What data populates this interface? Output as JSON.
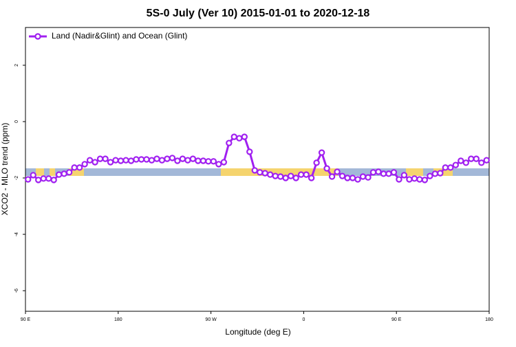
{
  "chart_data": {
    "type": "line",
    "title": "5S-0 July (Ver 10)   2015-01-01 to 2020-12-18",
    "x_label": "Longitude (deg E)",
    "y_label": "XCO2 - MLO trend (ppm)",
    "xlim": [
      90,
      540
    ],
    "ylim": [
      -6.73,
      3.34
    ],
    "xticks": [
      {
        "value": 90,
        "label": "90 E"
      },
      180,
      {
        "value": 270,
        "label": "90 W"
      },
      {
        "value": 360,
        "label": "0"
      },
      {
        "value": 450,
        "label": "90 E"
      },
      {
        "value": 540,
        "label": "180"
      }
    ],
    "yticks": [
      -6,
      -4,
      -2,
      0,
      2
    ],
    "legend": "top-left",
    "x": [
      92.5,
      97.5,
      102.5,
      107.5,
      112.5,
      117.5,
      122.5,
      127.5,
      132.5,
      137.5,
      142.5,
      147.5,
      152.5,
      157.5,
      162.5,
      167.5,
      172.5,
      177.5,
      182.5,
      187.5,
      192.5,
      197.5,
      202.5,
      207.5,
      212.5,
      217.5,
      222.5,
      227.5,
      232.5,
      237.5,
      242.5,
      247.5,
      252.5,
      257.5,
      262.5,
      267.5,
      272.5,
      277.5,
      282.5,
      287.5,
      292.5,
      297.5,
      302.5,
      307.5,
      312.5,
      317.5,
      322.5,
      327.5,
      332.5,
      337.5,
      342.5,
      347.5,
      352.5,
      357.5,
      362.5,
      367.5,
      372.5,
      377.5,
      382.5,
      387.5,
      392.5,
      397.5,
      402.5,
      407.5,
      412.5,
      417.5,
      422.5,
      427.5,
      432.5,
      437.5,
      442.5,
      447.5,
      452.5,
      457.5,
      462.5,
      467.5,
      472.5,
      477.5,
      482.5,
      487.5,
      492.5,
      497.5,
      502.5,
      507.5,
      512.5,
      517.5,
      522.5,
      527.5,
      532.5,
      537.5
    ],
    "series": [
      {
        "name": "Land (Nadir&Glint) and Ocean (Glint)",
        "color": "#a020f0",
        "values": [
          -2.05,
          -1.9,
          -2.07,
          -2.02,
          -2.02,
          -2.07,
          -1.88,
          -1.85,
          -1.8,
          -1.63,
          -1.63,
          -1.51,
          -1.37,
          -1.44,
          -1.32,
          -1.32,
          -1.44,
          -1.37,
          -1.39,
          -1.37,
          -1.39,
          -1.34,
          -1.34,
          -1.34,
          -1.37,
          -1.32,
          -1.37,
          -1.32,
          -1.29,
          -1.39,
          -1.32,
          -1.37,
          -1.32,
          -1.39,
          -1.39,
          -1.41,
          -1.41,
          -1.51,
          -1.44,
          -0.76,
          -0.54,
          -0.59,
          -0.54,
          -1.07,
          -1.73,
          -1.8,
          -1.83,
          -1.88,
          -1.93,
          -1.95,
          -2.0,
          -1.93,
          -2.0,
          -1.88,
          -1.88,
          -2.0,
          -1.46,
          -1.1,
          -1.66,
          -1.95,
          -1.78,
          -1.93,
          -2.0,
          -2.0,
          -2.05,
          -1.95,
          -1.98,
          -1.8,
          -1.78,
          -1.85,
          -1.85,
          -1.8,
          -2.05,
          -1.9,
          -2.05,
          -2.02,
          -2.05,
          -2.07,
          -1.93,
          -1.85,
          -1.83,
          -1.63,
          -1.63,
          -1.54,
          -1.39,
          -1.46,
          -1.32,
          -1.32,
          -1.46,
          -1.37
        ]
      }
    ]
  }
}
